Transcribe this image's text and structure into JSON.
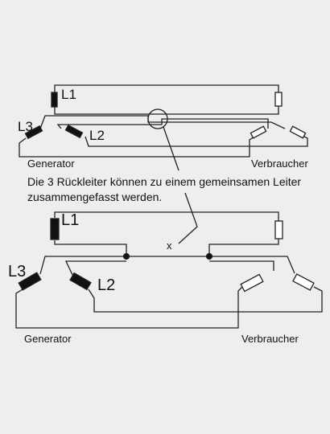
{
  "top_diagram": {
    "labels": {
      "l1": "L1",
      "l2": "L2",
      "l3": "L3"
    },
    "generator": "Generator",
    "consumer": "Verbraucher"
  },
  "note": {
    "line1": "Die 3 Rückleiter können zu einem gemeinsamen Leiter",
    "line2": "zusammengefasst werden."
  },
  "bottom_diagram": {
    "labels": {
      "l1": "L1",
      "l2": "L2",
      "l3": "L3"
    },
    "junction_marker": "x",
    "generator": "Generator",
    "consumer": "Verbraucher"
  }
}
